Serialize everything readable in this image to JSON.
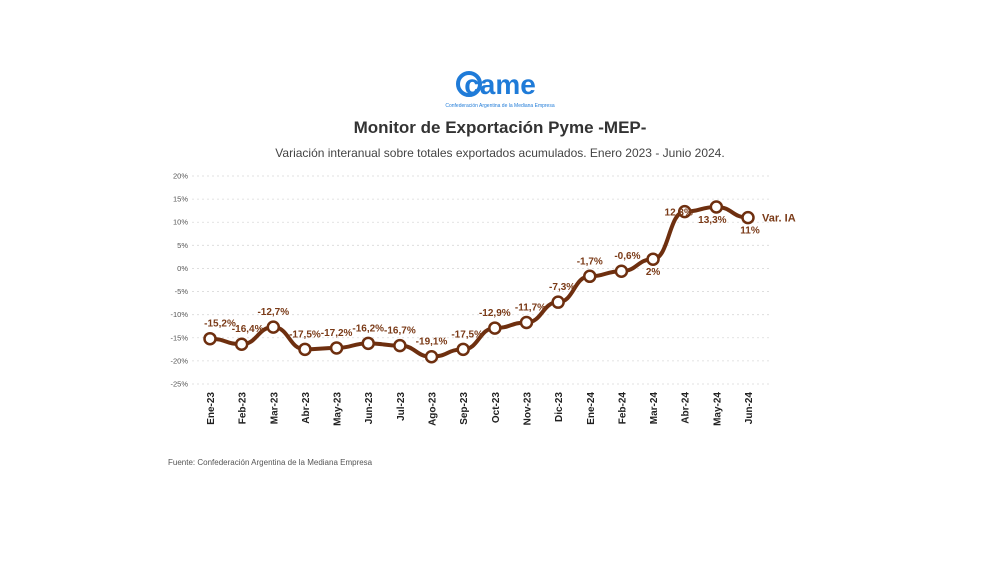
{
  "header": {
    "logo_word": "came",
    "logo_caption": "Confederación Argentina de la Mediana Empresa"
  },
  "footer": {
    "source": "Fuente: Confederación Argentina de la Mediana Empresa"
  },
  "colors": {
    "line": "#6e2f0f",
    "label": "#7a3a17",
    "marker_fill": "#ffffff",
    "grid": "#d9d9d9",
    "logo": "#1f7bd8"
  },
  "chart_data": {
    "type": "line",
    "title": "Monitor de Exportación Pyme -MEP-",
    "subtitle": "Variación interanual sobre totales exportados acumulados. Enero 2023 - Junio 2024.",
    "categories": [
      "Ene-23",
      "Feb-23",
      "Mar-23",
      "Abr-23",
      "May-23",
      "Jun-23",
      "Jul-23",
      "Ago-23",
      "Sep-23",
      "Oct-23",
      "Nov-23",
      "Dic-23",
      "Ene-24",
      "Feb-24",
      "Mar-24",
      "Abr-24",
      "May-24",
      "Jun-24"
    ],
    "series": [
      {
        "name": "Var. IA",
        "values": [
          -15.2,
          -16.4,
          -12.7,
          -17.5,
          -17.2,
          -16.2,
          -16.7,
          -19.1,
          -17.5,
          -12.9,
          -11.7,
          -7.3,
          -1.7,
          -0.6,
          2,
          12.3,
          13.3,
          11
        ],
        "labels": [
          "-15,2%",
          "-16,4%",
          "-12,7%",
          "-17,5%",
          "-17,2%",
          "-16,2%",
          "-16,7%",
          "-19,1%",
          "-17,5%",
          "-12,9%",
          "-11,7%",
          "-7,3%",
          "-1,7%",
          "-0,6%",
          "2%",
          "12,3%",
          "13,3%",
          "11%"
        ]
      }
    ],
    "ylim": [
      -25,
      20
    ],
    "yticks": [
      20,
      15,
      10,
      5,
      0,
      -5,
      -10,
      -15,
      -20,
      -25
    ],
    "ytick_labels": [
      "20%",
      "15%",
      "10%",
      "5%",
      "0%",
      "-5%",
      "-10%",
      "-15%",
      "-20%",
      "-25%"
    ],
    "grid": true,
    "xlabel": "",
    "ylabel": ""
  }
}
